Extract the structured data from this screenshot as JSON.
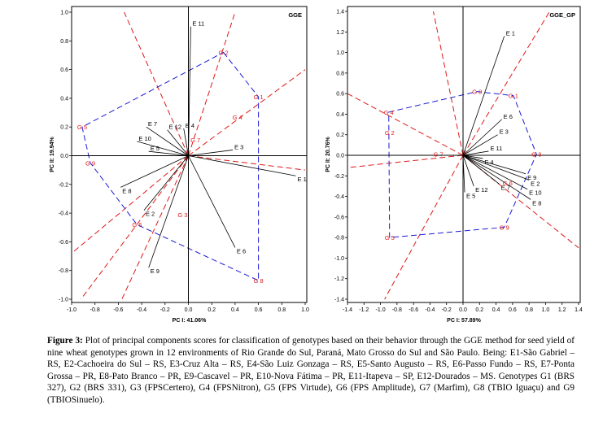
{
  "caption": {
    "label": "Figure 3:",
    "text": "Plot of principal components scores for classification of genotypes based on their behavior through the GGE method for seed yield of nine wheat genotypes grown in 12 environments of Rio Grande do Sul, Paraná, Mato Grosso do Sul and São Paulo. Being: E1-São Gabriel – RS, E2-Cachoeira do Sul – RS, E3-Cruz Alta – RS, E4-São Luiz Gonzaga – RS, E5-Santo Augusto – RS, E6-Passo Fundo – RS, E7-Ponta Grossa – PR, E8-Pato Branco – PR, E9-Cascavel – PR, E10-Nova Fátima – PR, E11-Itapeva – SP, E12-Dourados – MS. Genotypes G1 (BRS 327), G2 (BRS 331), G3 (FPSCertero), G4 (FPSNitron), G5 (FPS Virtude), G6 (FPS Amplitude), G7 (Marfim), G8 (TBIO Iguaçu) and G9 (TBIOSinuelo)."
  },
  "colors": {
    "genotype": "#e01818",
    "environment": "#000000",
    "polygon": "#1a1ad6",
    "sector": "#e01818"
  },
  "chart_data": [
    {
      "type": "scatter",
      "title": "GGE",
      "xlabel": "PC I: 41.06%",
      "ylabel": "PC II: 19.94%",
      "xlim": [
        -1.0,
        1.0
      ],
      "ylim": [
        -1.0,
        1.0
      ],
      "xticks": [
        "-1.0",
        "-0.8",
        "-0.6",
        "-0.4",
        "-0.2",
        "0.0",
        "0.2",
        "0.4",
        "0.6",
        "0.8",
        "1.0"
      ],
      "yticks": [
        "1.0",
        "0.8",
        "0.6",
        "0.4",
        "0.2",
        "0.0",
        "-0.2",
        "-0.4",
        "-0.6",
        "-0.8",
        "-1.0"
      ],
      "environments": [
        {
          "label": "E 1",
          "x": 0.92,
          "y": -0.14
        },
        {
          "label": "E 2",
          "x": -0.38,
          "y": -0.38
        },
        {
          "label": "E 3",
          "x": 0.38,
          "y": 0.04
        },
        {
          "label": "E 4",
          "x": -0.04,
          "y": 0.19
        },
        {
          "label": "E 5",
          "x": -0.34,
          "y": 0.03
        },
        {
          "label": "E 6",
          "x": 0.4,
          "y": -0.64
        },
        {
          "label": "E 7",
          "x": -0.36,
          "y": 0.2
        },
        {
          "label": "E 8",
          "x": -0.58,
          "y": -0.22
        },
        {
          "label": "E 9",
          "x": -0.34,
          "y": -0.78
        },
        {
          "label": "E 10",
          "x": -0.44,
          "y": 0.1
        },
        {
          "label": "E 11",
          "x": 0.02,
          "y": 0.9
        },
        {
          "label": "E 12",
          "x": -0.18,
          "y": 0.18
        }
      ],
      "genotypes": [
        {
          "label": "G 1",
          "x": 0.6,
          "y": 0.41
        },
        {
          "label": "G 2",
          "x": 0.3,
          "y": 0.72
        },
        {
          "label": "G 3",
          "x": -0.05,
          "y": -0.41
        },
        {
          "label": "G 4",
          "x": 0.42,
          "y": 0.27
        },
        {
          "label": "G 5",
          "x": -0.91,
          "y": 0.2
        },
        {
          "label": "G 6",
          "x": -0.44,
          "y": -0.48
        },
        {
          "label": "G 7",
          "x": 0.06,
          "y": 0.11
        },
        {
          "label": "G 8",
          "x": 0.6,
          "y": -0.87
        },
        {
          "label": "G 9",
          "x": -0.84,
          "y": -0.05
        }
      ],
      "polygon": [
        [
          0.3,
          0.72
        ],
        [
          0.6,
          0.41
        ],
        [
          0.6,
          -0.87
        ],
        [
          -0.44,
          -0.48
        ],
        [
          -0.84,
          -0.05
        ],
        [
          -0.91,
          0.2
        ]
      ],
      "sectors": [
        [
          0.4,
          1.0
        ],
        [
          1.0,
          0.6
        ],
        [
          1.0,
          -0.1
        ],
        [
          -1.0,
          -0.68
        ],
        [
          -0.92,
          -1.0
        ],
        [
          -0.57,
          -1.0
        ],
        [
          -0.55,
          1.0
        ]
      ]
    },
    {
      "type": "scatter",
      "title": "GGE_GP",
      "xlabel": "PC I: 57.89%",
      "ylabel": "PC II: 20.76%",
      "xlim": [
        -1.4,
        1.4
      ],
      "ylim": [
        -1.4,
        1.4
      ],
      "xticks": [
        "-1.4",
        "-1.2",
        "-1.0",
        "-0.8",
        "-0.6",
        "-0.4",
        "-0.2",
        "0.0",
        "0.2",
        "0.4",
        "0.6",
        "0.8",
        "1.0",
        "1.2",
        "1.4"
      ],
      "yticks": [
        "1.4",
        "1.2",
        "1.0",
        "0.8",
        "0.6",
        "0.4",
        "0.2",
        "0.0",
        "-0.2",
        "-0.4",
        "-0.6",
        "-0.8",
        "-1.0",
        "-1.2",
        "-1.4"
      ],
      "environments": [
        {
          "label": "E 1",
          "x": 0.5,
          "y": 1.16
        },
        {
          "label": "E 2",
          "x": 0.8,
          "y": -0.24
        },
        {
          "label": "E 3",
          "x": 0.42,
          "y": 0.2
        },
        {
          "label": "E 4",
          "x": 0.24,
          "y": -0.03
        },
        {
          "label": "E 5",
          "x": 0.02,
          "y": -0.36
        },
        {
          "label": "E 6",
          "x": 0.47,
          "y": 0.35
        },
        {
          "label": "E 7",
          "x": 0.44,
          "y": -0.28
        },
        {
          "label": "E 8",
          "x": 0.82,
          "y": -0.43
        },
        {
          "label": "E 9",
          "x": 0.76,
          "y": -0.18
        },
        {
          "label": "E 10",
          "x": 0.78,
          "y": -0.33
        },
        {
          "label": "E 11",
          "x": 0.31,
          "y": 0.04
        },
        {
          "label": "E 12",
          "x": 0.13,
          "y": -0.3
        }
      ],
      "genotypes": [
        {
          "label": "G 1",
          "x": 0.61,
          "y": 0.58
        },
        {
          "label": "G 2",
          "x": -0.89,
          "y": 0.22
        },
        {
          "label": "G 3",
          "x": 0.89,
          "y": 0.01
        },
        {
          "label": "G 4",
          "x": -0.9,
          "y": 0.42
        },
        {
          "label": "G 5",
          "x": -0.89,
          "y": -0.8
        },
        {
          "label": "G 6",
          "x": 0.54,
          "y": -0.27
        },
        {
          "label": "G 7",
          "x": -0.3,
          "y": 0.01
        },
        {
          "label": "G 8",
          "x": 0.17,
          "y": 0.62
        },
        {
          "label": "G 9",
          "x": 0.5,
          "y": -0.7
        }
      ],
      "polygon": [
        [
          -0.9,
          0.42
        ],
        [
          0.17,
          0.62
        ],
        [
          0.61,
          0.58
        ],
        [
          0.89,
          0.01
        ],
        [
          0.5,
          -0.7
        ],
        [
          -0.89,
          -0.8
        ]
      ],
      "sectors": [
        [
          -0.36,
          1.4
        ],
        [
          1.05,
          1.4
        ],
        [
          1.4,
          0.0
        ],
        [
          1.4,
          -0.9
        ],
        [
          -0.95,
          -1.4
        ],
        [
          -1.4,
          -0.12
        ],
        [
          -1.4,
          0.6
        ]
      ]
    }
  ]
}
